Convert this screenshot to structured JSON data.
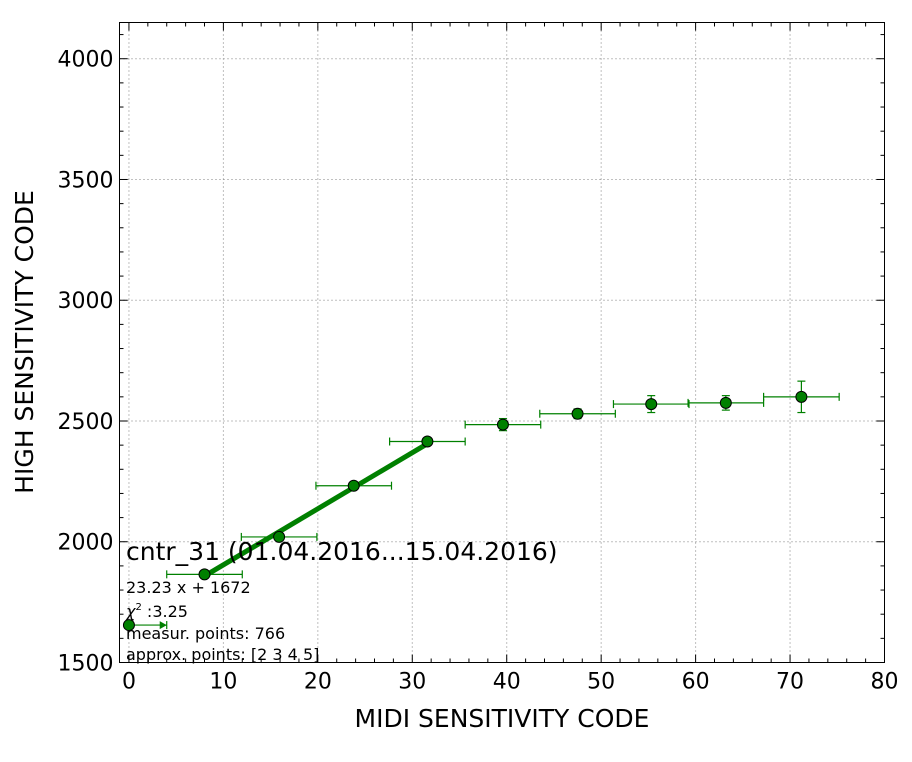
{
  "chart_data": {
    "type": "scatter",
    "title": "",
    "xlabel": "MIDI SENSITIVITY CODE",
    "ylabel": "HIGH SENSITIVITY CODE",
    "xlim": [
      -1,
      80
    ],
    "ylim": [
      1500,
      4150
    ],
    "xticks": [
      0,
      10,
      20,
      30,
      40,
      50,
      60,
      70,
      80
    ],
    "yticks": [
      1500,
      2000,
      2500,
      3000,
      3500,
      4000
    ],
    "grid": true,
    "colors": {
      "series": "#008000",
      "marker_edge": "#000000",
      "grid": "#808080"
    },
    "series": [
      {
        "type": "errorbar",
        "points": [
          {
            "x": 0,
            "y": 1655,
            "xerr_left": 0,
            "xerr_right": 4,
            "yerr": 0
          },
          {
            "x": 8,
            "y": 1865,
            "xerr_left": 4,
            "xerr_right": 4,
            "yerr": 0
          },
          {
            "x": 15.9,
            "y": 2020,
            "xerr_left": 4,
            "xerr_right": 4,
            "yerr": 0
          },
          {
            "x": 23.8,
            "y": 2232,
            "xerr_left": 4,
            "xerr_right": 4,
            "yerr": 0
          },
          {
            "x": 31.6,
            "y": 2415,
            "xerr_left": 4,
            "xerr_right": 4,
            "yerr": 0
          },
          {
            "x": 39.6,
            "y": 2485,
            "xerr_left": 4,
            "xerr_right": 4,
            "yerr": 25
          },
          {
            "x": 47.5,
            "y": 2530,
            "xerr_left": 4,
            "xerr_right": 4,
            "yerr": 20
          },
          {
            "x": 55.3,
            "y": 2570,
            "xerr_left": 4,
            "xerr_right": 4,
            "yerr": 35
          },
          {
            "x": 63.2,
            "y": 2575,
            "xerr_left": 4,
            "xerr_right": 4,
            "yerr": 30
          },
          {
            "x": 71.2,
            "y": 2600,
            "xerr_left": 4,
            "xerr_right": 4,
            "yerr": 65
          }
        ]
      },
      {
        "type": "fit-line",
        "slope": 23.23,
        "intercept": 1672,
        "x": [
          8,
          31.6
        ]
      }
    ],
    "annotations": {
      "name": "cntr_31 (01.04.2016...15.04.2016)",
      "fit": "23.23 x + 1672",
      "chi_symbol": "χ",
      "chi_exp": "2",
      "chi_value": " :3.25",
      "measured": "measur. points: 766",
      "approx": "approx. points: [2 3 4 5]"
    }
  }
}
